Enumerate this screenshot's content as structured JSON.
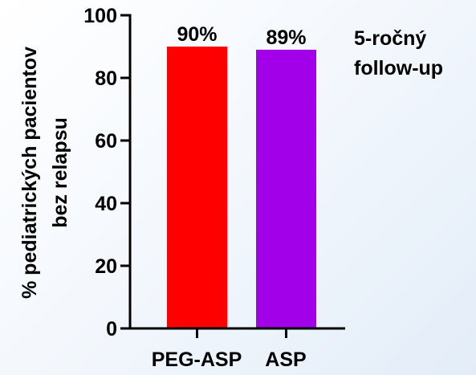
{
  "chart_data": {
    "type": "bar",
    "categories": [
      "PEG-ASP",
      "ASP"
    ],
    "values": [
      90,
      89
    ],
    "data_labels": [
      "90%",
      "89%"
    ],
    "colors": [
      "#ff0000",
      "#a100e8"
    ],
    "ylabel_line1": "% pediatrických pacientov",
    "ylabel_line2": "bez relapsu",
    "annotation_line1": "5-ročný",
    "annotation_line2": "follow-up",
    "ylim": [
      0,
      100
    ],
    "yticks": [
      0,
      20,
      40,
      60,
      80,
      100
    ],
    "grid": false,
    "legend": "none"
  }
}
